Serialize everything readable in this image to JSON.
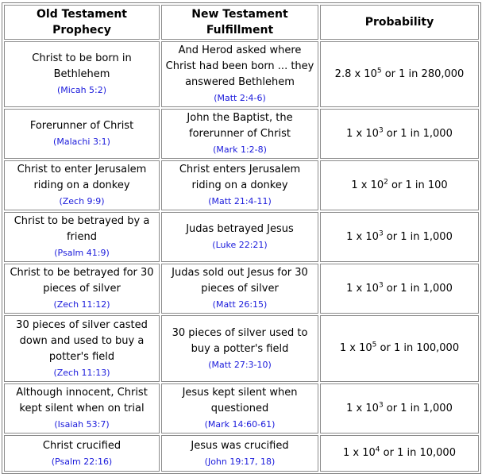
{
  "headers": [
    "Old Testament Prophecy",
    "New Testament Fulfillment",
    "Probability"
  ],
  "rows": [
    {
      "ot": "Christ to be born in Bethlehem",
      "ot_ref": "(Micah 5:2)",
      "nt": "And Herod asked where Christ had been born ... they answered Bethlehem",
      "nt_ref": "(Matt 2:4-6)",
      "prob_base": "2.8 x 10",
      "prob_exp": "5",
      "prob_tail": " or 1 in 280,000"
    },
    {
      "ot": "Forerunner of Christ",
      "ot_ref": "(Malachi 3:1)",
      "nt": "John the Baptist, the forerunner of Christ",
      "nt_ref": "(Mark 1:2-8)",
      "prob_base": "1 x 10",
      "prob_exp": "3",
      "prob_tail": " or 1 in 1,000"
    },
    {
      "ot": "Christ to enter Jerusalem riding on a donkey",
      "ot_ref": "(Zech 9:9)",
      "nt": "Christ enters Jerusalem riding on a donkey",
      "nt_ref": "(Matt 21:4-11)",
      "prob_base": "1 x 10",
      "prob_exp": "2",
      "prob_tail": " or 1 in 100"
    },
    {
      "ot": "Christ to be betrayed by a friend",
      "ot_ref": "(Psalm 41:9)",
      "nt": "Judas betrayed Jesus",
      "nt_ref": "(Luke 22:21)",
      "prob_base": "1 x 10",
      "prob_exp": "3",
      "prob_tail": " or 1 in 1,000"
    },
    {
      "ot": "Christ to be betrayed for 30 pieces of silver",
      "ot_ref": "(Zech 11:12)",
      "nt": "Judas sold out Jesus for 30 pieces of silver",
      "nt_ref": "(Matt 26:15)",
      "prob_base": "1 x 10",
      "prob_exp": "3",
      "prob_tail": " or 1 in 1,000"
    },
    {
      "ot": "30 pieces of silver casted down and used to buy a potter's field",
      "ot_ref": "(Zech 11:13)",
      "nt": "30 pieces of silver used to buy a potter's field",
      "nt_ref": "(Matt 27:3-10)",
      "prob_base": "1 x 10",
      "prob_exp": "5",
      "prob_tail": " or 1 in 100,000"
    },
    {
      "ot": "Although innocent, Christ kept silent when on trial",
      "ot_ref": "(Isaiah 53:7)",
      "nt": "Jesus kept silent when questioned",
      "nt_ref": "(Mark 14:60-61)",
      "prob_base": "1 x 10",
      "prob_exp": "3",
      "prob_tail": " or 1 in 1,000"
    },
    {
      "ot": "Christ crucified",
      "ot_ref": "(Psalm 22:16)",
      "nt": "Jesus was crucified",
      "nt_ref": "(John 19:17, 18)",
      "prob_base": "1 x 10",
      "prob_exp": "4",
      "prob_tail": " or 1 in 10,000"
    }
  ]
}
